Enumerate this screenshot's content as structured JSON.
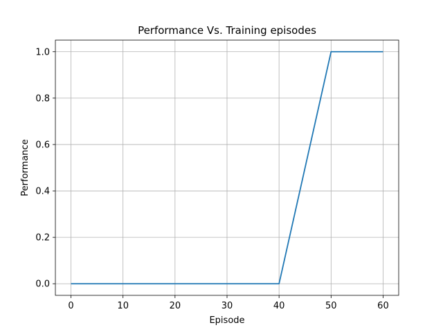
{
  "chart_data": {
    "type": "line",
    "title": "Performance Vs. Training episodes",
    "xlabel": "Episode",
    "ylabel": "Performance",
    "xlim": [
      -3,
      63
    ],
    "ylim": [
      -0.05,
      1.05
    ],
    "xticks": [
      0,
      10,
      20,
      30,
      40,
      50,
      60
    ],
    "yticks": [
      0.0,
      0.2,
      0.4,
      0.6,
      0.8,
      1.0
    ],
    "ytick_labels": [
      "0.0",
      "0.2",
      "0.4",
      "0.6",
      "0.8",
      "1.0"
    ],
    "grid": true,
    "series": [
      {
        "color": "#1f77b4",
        "x": [
          0,
          10,
          20,
          30,
          40,
          50,
          60
        ],
        "y": [
          0,
          0,
          0,
          0,
          0,
          1,
          1
        ]
      }
    ]
  }
}
